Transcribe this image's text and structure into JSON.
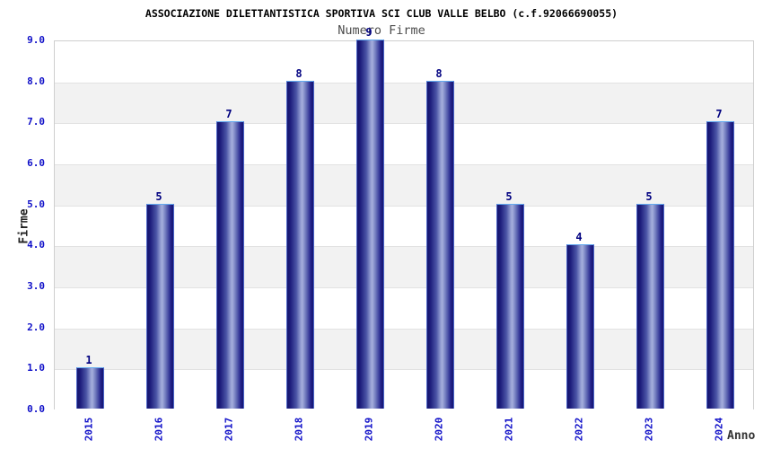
{
  "chart_data": {
    "type": "bar",
    "title": "ASSOCIAZIONE DILETTANTISTICA SPORTIVA SCI CLUB VALLE BELBO (c.f.92066690055)",
    "subtitle": "Numero Firme",
    "xlabel": "Anno",
    "ylabel": "Firme",
    "categories": [
      "2015",
      "2016",
      "2017",
      "2018",
      "2019",
      "2020",
      "2021",
      "2022",
      "2023",
      "2024"
    ],
    "values": [
      1,
      5,
      7,
      8,
      9,
      8,
      5,
      4,
      5,
      7
    ],
    "value_labels": [
      "1",
      "5",
      "7",
      "8",
      "9",
      "8",
      "5",
      "4",
      "5",
      "7"
    ],
    "ylim": [
      0,
      9
    ],
    "ytick_labels_top_to_bottom": [
      "9.0",
      "8.0",
      "7.0",
      "6.0",
      "5.0",
      "4.0",
      "3.0",
      "2.0",
      "1.0",
      "0.0"
    ],
    "grid": "horizontal-bands",
    "legend": "none",
    "colors": {
      "tick_label": "#0f0fc8",
      "bar_value_label": "#000080",
      "bar_dark": "#15156e",
      "bar_light": "#a5aedc",
      "bar_border": "#63aaef",
      "band_gray": "#f2f2f2",
      "band_white": "#ffffff",
      "plot_border": "#cfcfcf",
      "title": "#000000",
      "subtitle": "#4d4d4d",
      "axis_label": "#222222"
    }
  }
}
